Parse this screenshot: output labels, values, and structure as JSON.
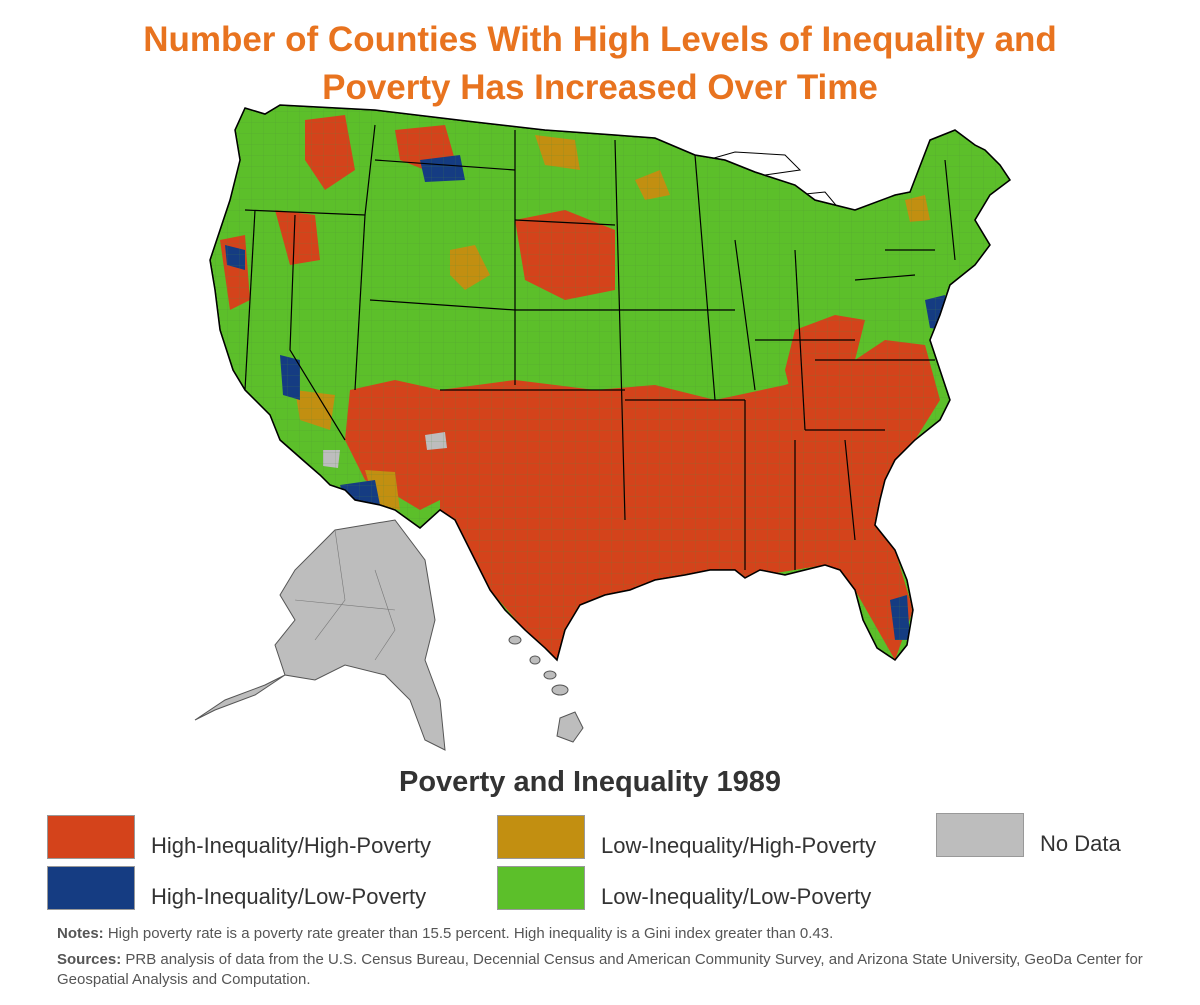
{
  "title": {
    "line1": "Number of Counties With High Levels of Inequality and",
    "line2": "Poverty Has Increased Over Time"
  },
  "map": {
    "subtitle": "Poverty and Inequality 1989"
  },
  "legend": {
    "items": [
      {
        "label": "High-Inequality/High-Poverty",
        "color": "#d4431b"
      },
      {
        "label": "High-Inequality/Low-Poverty",
        "color": "#153c82"
      },
      {
        "label": "Low-Inequality/High-Poverty",
        "color": "#c28f11"
      },
      {
        "label": "Low-Inequality/Low-Poverty",
        "color": "#5cbf2a"
      },
      {
        "label": "No Data",
        "color": "#bdbdbd"
      }
    ]
  },
  "notes": {
    "label": "Notes:",
    "text": " High poverty rate is a poverty rate greater than 15.5 percent. High inequality is a Gini index greater than 0.43."
  },
  "sources": {
    "label": "Sources:",
    "text": " PRB analysis of data from the U.S. Census Bureau, Decennial Census and American Community Survey, and Arizona State University, GeoDa Center for Geospatial Analysis and Computation."
  }
}
